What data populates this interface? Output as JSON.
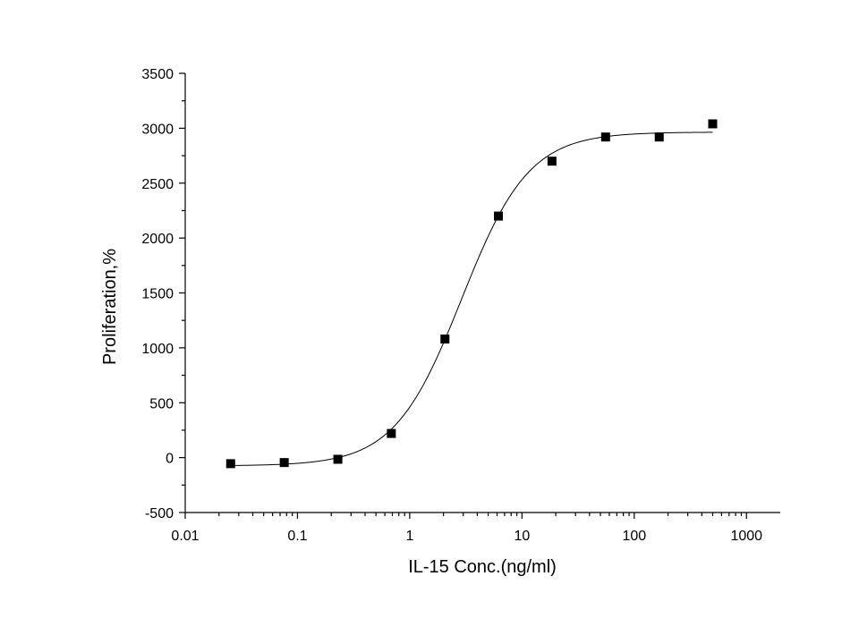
{
  "chart_data": {
    "type": "scatter",
    "title": "",
    "xlabel": "IL-15 Conc.(ng/ml)",
    "ylabel": "Proliferation,%",
    "x_scale": "log",
    "xlim": [
      0.01,
      2000
    ],
    "ylim": [
      -500,
      3500
    ],
    "x_ticks": [
      0.01,
      0.1,
      1,
      10,
      100,
      1000
    ],
    "x_tick_labels": [
      "0.01",
      "0.1",
      "1",
      "10",
      "100",
      "1000"
    ],
    "y_ticks": [
      -500,
      0,
      500,
      1000,
      1500,
      2000,
      2500,
      3000,
      3500
    ],
    "y_tick_labels": [
      "-500",
      "0",
      "500",
      "1000",
      "1500",
      "2000",
      "2500",
      "3000",
      "3500"
    ],
    "grid": false,
    "legend": "none",
    "marker_color": "#000000",
    "series": [
      {
        "x": [
          0.0254,
          0.0762,
          0.229,
          0.686,
          2.06,
          6.17,
          18.5,
          55.6,
          167,
          500
        ],
        "y": [
          -55,
          -45,
          -15,
          220,
          1080,
          2200,
          2700,
          2920,
          2920,
          3040
        ]
      }
    ],
    "fit": {
      "type": "4PL",
      "x_range": [
        0.0254,
        500
      ],
      "bottom": -75,
      "top": 2965,
      "ec50": 2.9,
      "hill": 1.45
    }
  }
}
